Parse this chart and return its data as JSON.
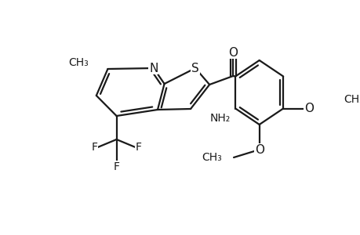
{
  "bg_color": "#ffffff",
  "line_color": "#1a1a1a",
  "line_width": 1.6,
  "figsize": [
    4.6,
    3.0
  ],
  "dpi": 100,
  "xlim": [
    0,
    460
  ],
  "ylim": [
    0,
    300
  ]
}
